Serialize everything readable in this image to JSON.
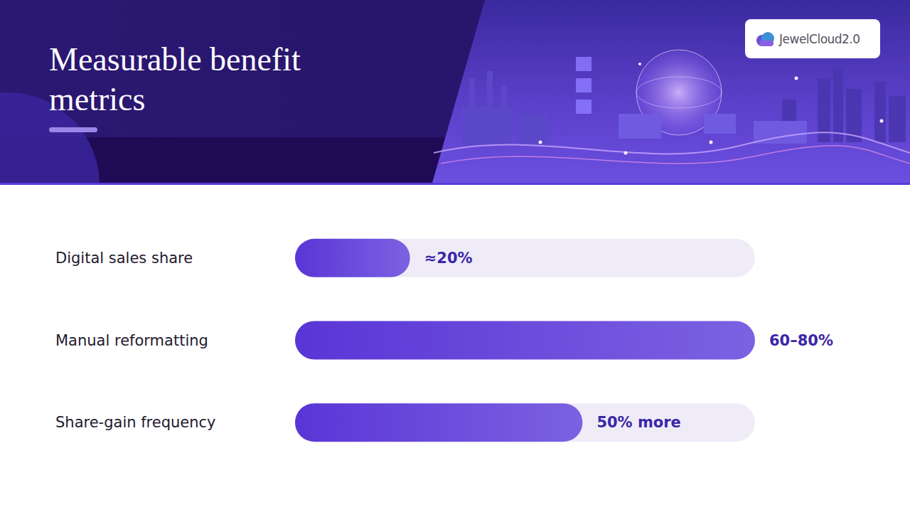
{
  "header": {
    "title": "Measurable benefit metrics",
    "logo": "JewelCloud2.0"
  },
  "chart_data": {
    "type": "bar",
    "orientation": "horizontal",
    "categories": [
      "Digital sales share",
      "Manual reformatting",
      "Share-gain frequency"
    ],
    "values": [
      20,
      80,
      50
    ],
    "value_labels": [
      "≈20%",
      "60–80%",
      "50% more"
    ],
    "color": "#5a35d6",
    "xlim": [
      0,
      80
    ],
    "xticks": [
      0,
      80
    ],
    "grid": false,
    "tick_labels": false,
    "data_labels": true
  }
}
